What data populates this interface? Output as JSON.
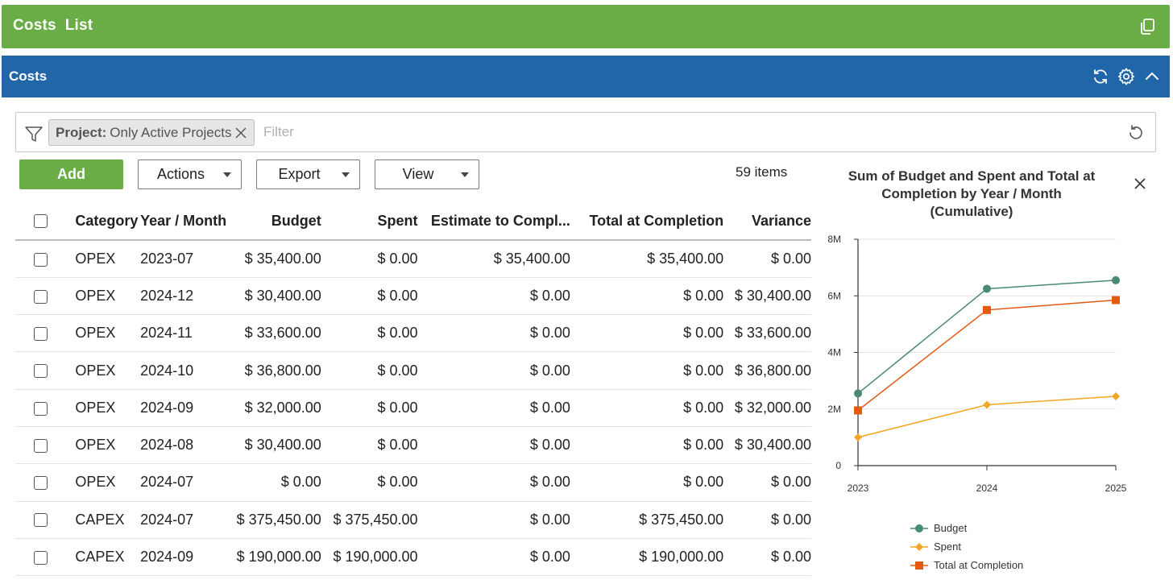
{
  "header": {
    "title": "Costs  List",
    "copy_icon": "copy-icon"
  },
  "panel": {
    "title": "Costs",
    "icons": [
      "refresh-icon",
      "gear-icon",
      "chevron-up-icon"
    ]
  },
  "filter": {
    "chip_key": "Project:",
    "chip_value": "Only Active Projects",
    "placeholder": "Filter"
  },
  "toolbar": {
    "add_label": "Add",
    "actions_label": "Actions",
    "export_label": "Export",
    "view_label": "View",
    "items_count": "59 items"
  },
  "table": {
    "columns": [
      "Category",
      "Year / Month",
      "Budget",
      "Spent",
      "Estimate to Compl...",
      "Total at Completion",
      "Variance"
    ],
    "rows": [
      [
        "OPEX",
        "2023-07",
        "$ 35,400.00",
        "$ 0.00",
        "$ 35,400.00",
        "$ 35,400.00",
        "$ 0.00"
      ],
      [
        "OPEX",
        "2024-12",
        "$ 30,400.00",
        "$ 0.00",
        "$ 0.00",
        "$ 0.00",
        "$ 30,400.00"
      ],
      [
        "OPEX",
        "2024-11",
        "$ 33,600.00",
        "$ 0.00",
        "$ 0.00",
        "$ 0.00",
        "$ 33,600.00"
      ],
      [
        "OPEX",
        "2024-10",
        "$ 36,800.00",
        "$ 0.00",
        "$ 0.00",
        "$ 0.00",
        "$ 36,800.00"
      ],
      [
        "OPEX",
        "2024-09",
        "$ 32,000.00",
        "$ 0.00",
        "$ 0.00",
        "$ 0.00",
        "$ 32,000.00"
      ],
      [
        "OPEX",
        "2024-08",
        "$ 30,400.00",
        "$ 0.00",
        "$ 0.00",
        "$ 0.00",
        "$ 30,400.00"
      ],
      [
        "OPEX",
        "2024-07",
        "$ 0.00",
        "$ 0.00",
        "$ 0.00",
        "$ 0.00",
        "$ 0.00"
      ],
      [
        "CAPEX",
        "2024-07",
        "$ 375,450.00",
        "$ 375,450.00",
        "$ 0.00",
        "$ 375,450.00",
        "$ 0.00"
      ],
      [
        "CAPEX",
        "2024-09",
        "$ 190,000.00",
        "$ 190,000.00",
        "$ 0.00",
        "$ 190,000.00",
        "$ 0.00"
      ]
    ]
  },
  "colors": {
    "header_green": "#6aac45",
    "panel_blue": "#2066a8",
    "budget": "#4a8a74",
    "spent": "#f2a623",
    "total_at_completion": "#e35a12"
  },
  "chart_data": {
    "type": "line",
    "title": "Sum of Budget and Spent and Total at Completion by Year / Month (Cumulative)",
    "x": [
      "2023",
      "2024",
      "2025"
    ],
    "y_tick_labels": [
      "0",
      "2M",
      "4M",
      "6M",
      "8M"
    ],
    "ylim": [
      0,
      8000000
    ],
    "grid": true,
    "legend_position": "bottom",
    "series": [
      {
        "name": "Budget",
        "values": [
          2550000,
          6250000,
          6550000
        ],
        "marker": "circle",
        "color": "#4a8a74"
      },
      {
        "name": "Spent",
        "values": [
          1000000,
          2150000,
          2450000
        ],
        "marker": "diamond",
        "color": "#f2a623"
      },
      {
        "name": "Total at Completion",
        "values": [
          1950000,
          5500000,
          5850000
        ],
        "marker": "square",
        "color": "#e35a12"
      }
    ]
  }
}
